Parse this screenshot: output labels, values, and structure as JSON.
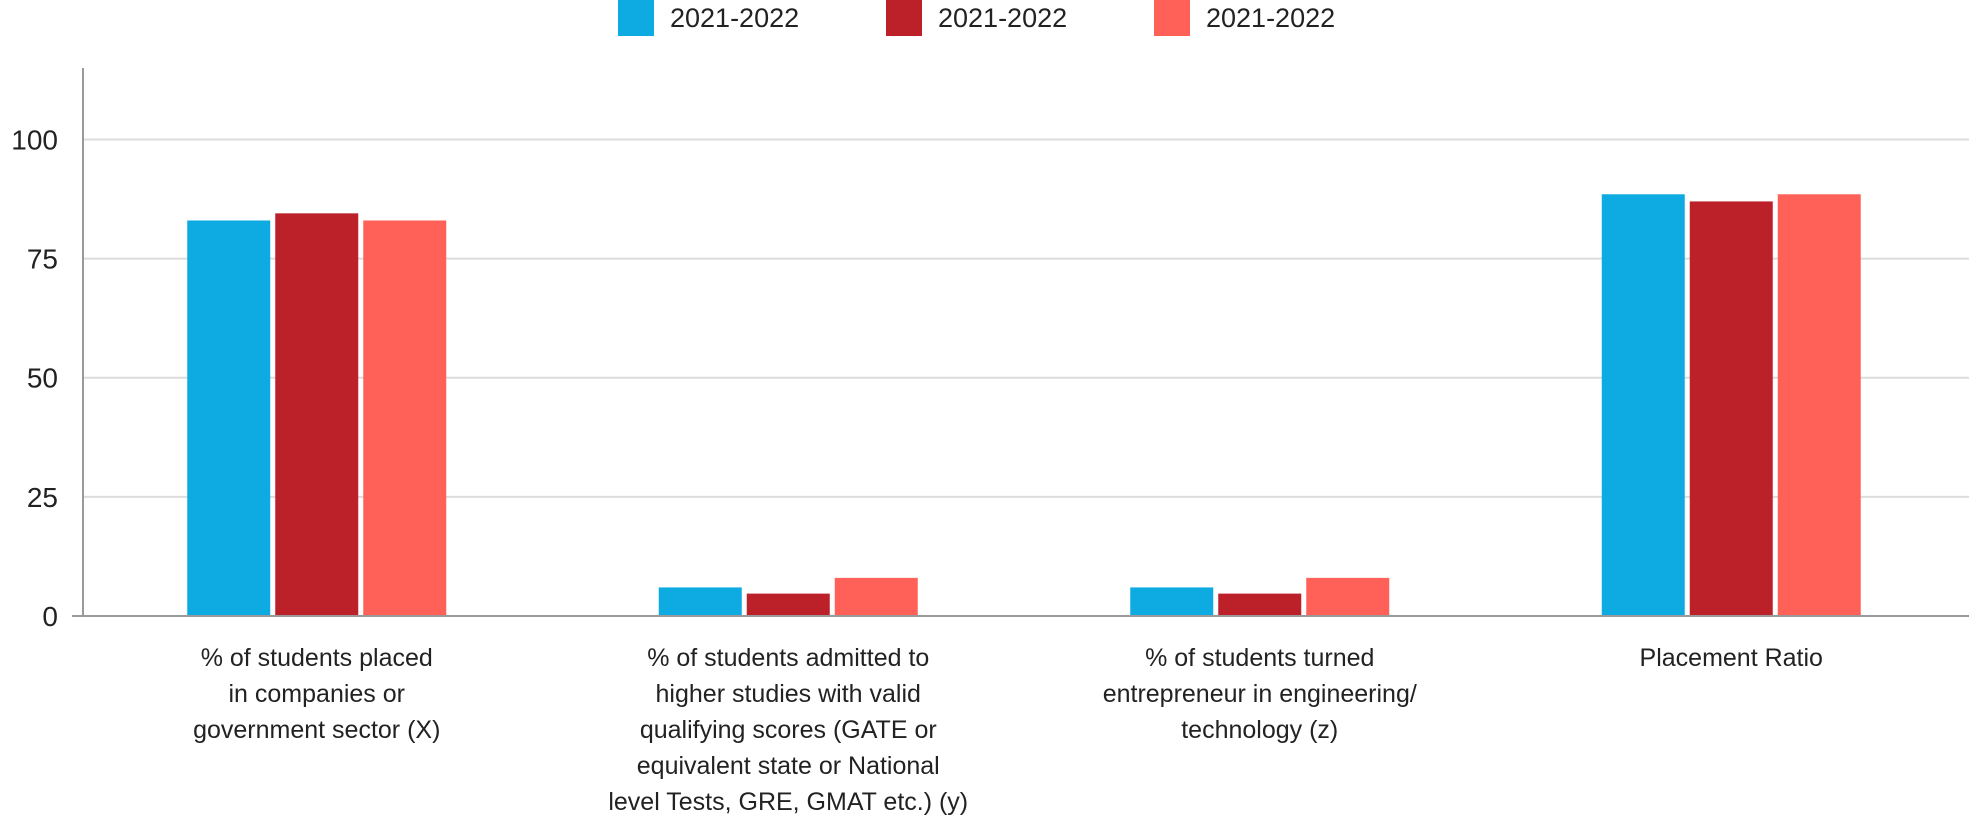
{
  "chart_data": {
    "type": "bar",
    "title": "",
    "xlabel": "",
    "ylabel": "",
    "ylim": [
      0,
      115
    ],
    "yticks": [
      0,
      25,
      50,
      75,
      100
    ],
    "grid": true,
    "legend_position": "top-center",
    "categories": [
      [
        "% of students placed",
        "in companies or",
        "government sector (X)"
      ],
      [
        "% of students admitted to",
        "higher studies with valid",
        "qualifying scores (GATE or",
        "equivalent state or National",
        "level Tests, GRE, GMAT etc.) (y)"
      ],
      [
        "% of students turned",
        "entrepreneur in engineering/",
        "technology (z)"
      ],
      [
        "Placement Ratio"
      ]
    ],
    "series": [
      {
        "name": "2021-2022",
        "color": "#0eabe2",
        "values": [
          83,
          6,
          6,
          88.5
        ]
      },
      {
        "name": "2021-2022",
        "color": "#bc2029",
        "values": [
          84.5,
          4.7,
          4.7,
          87
        ]
      },
      {
        "name": "2021-2022",
        "color": "#ff6057",
        "values": [
          83,
          8,
          8,
          88.5
        ]
      }
    ]
  }
}
